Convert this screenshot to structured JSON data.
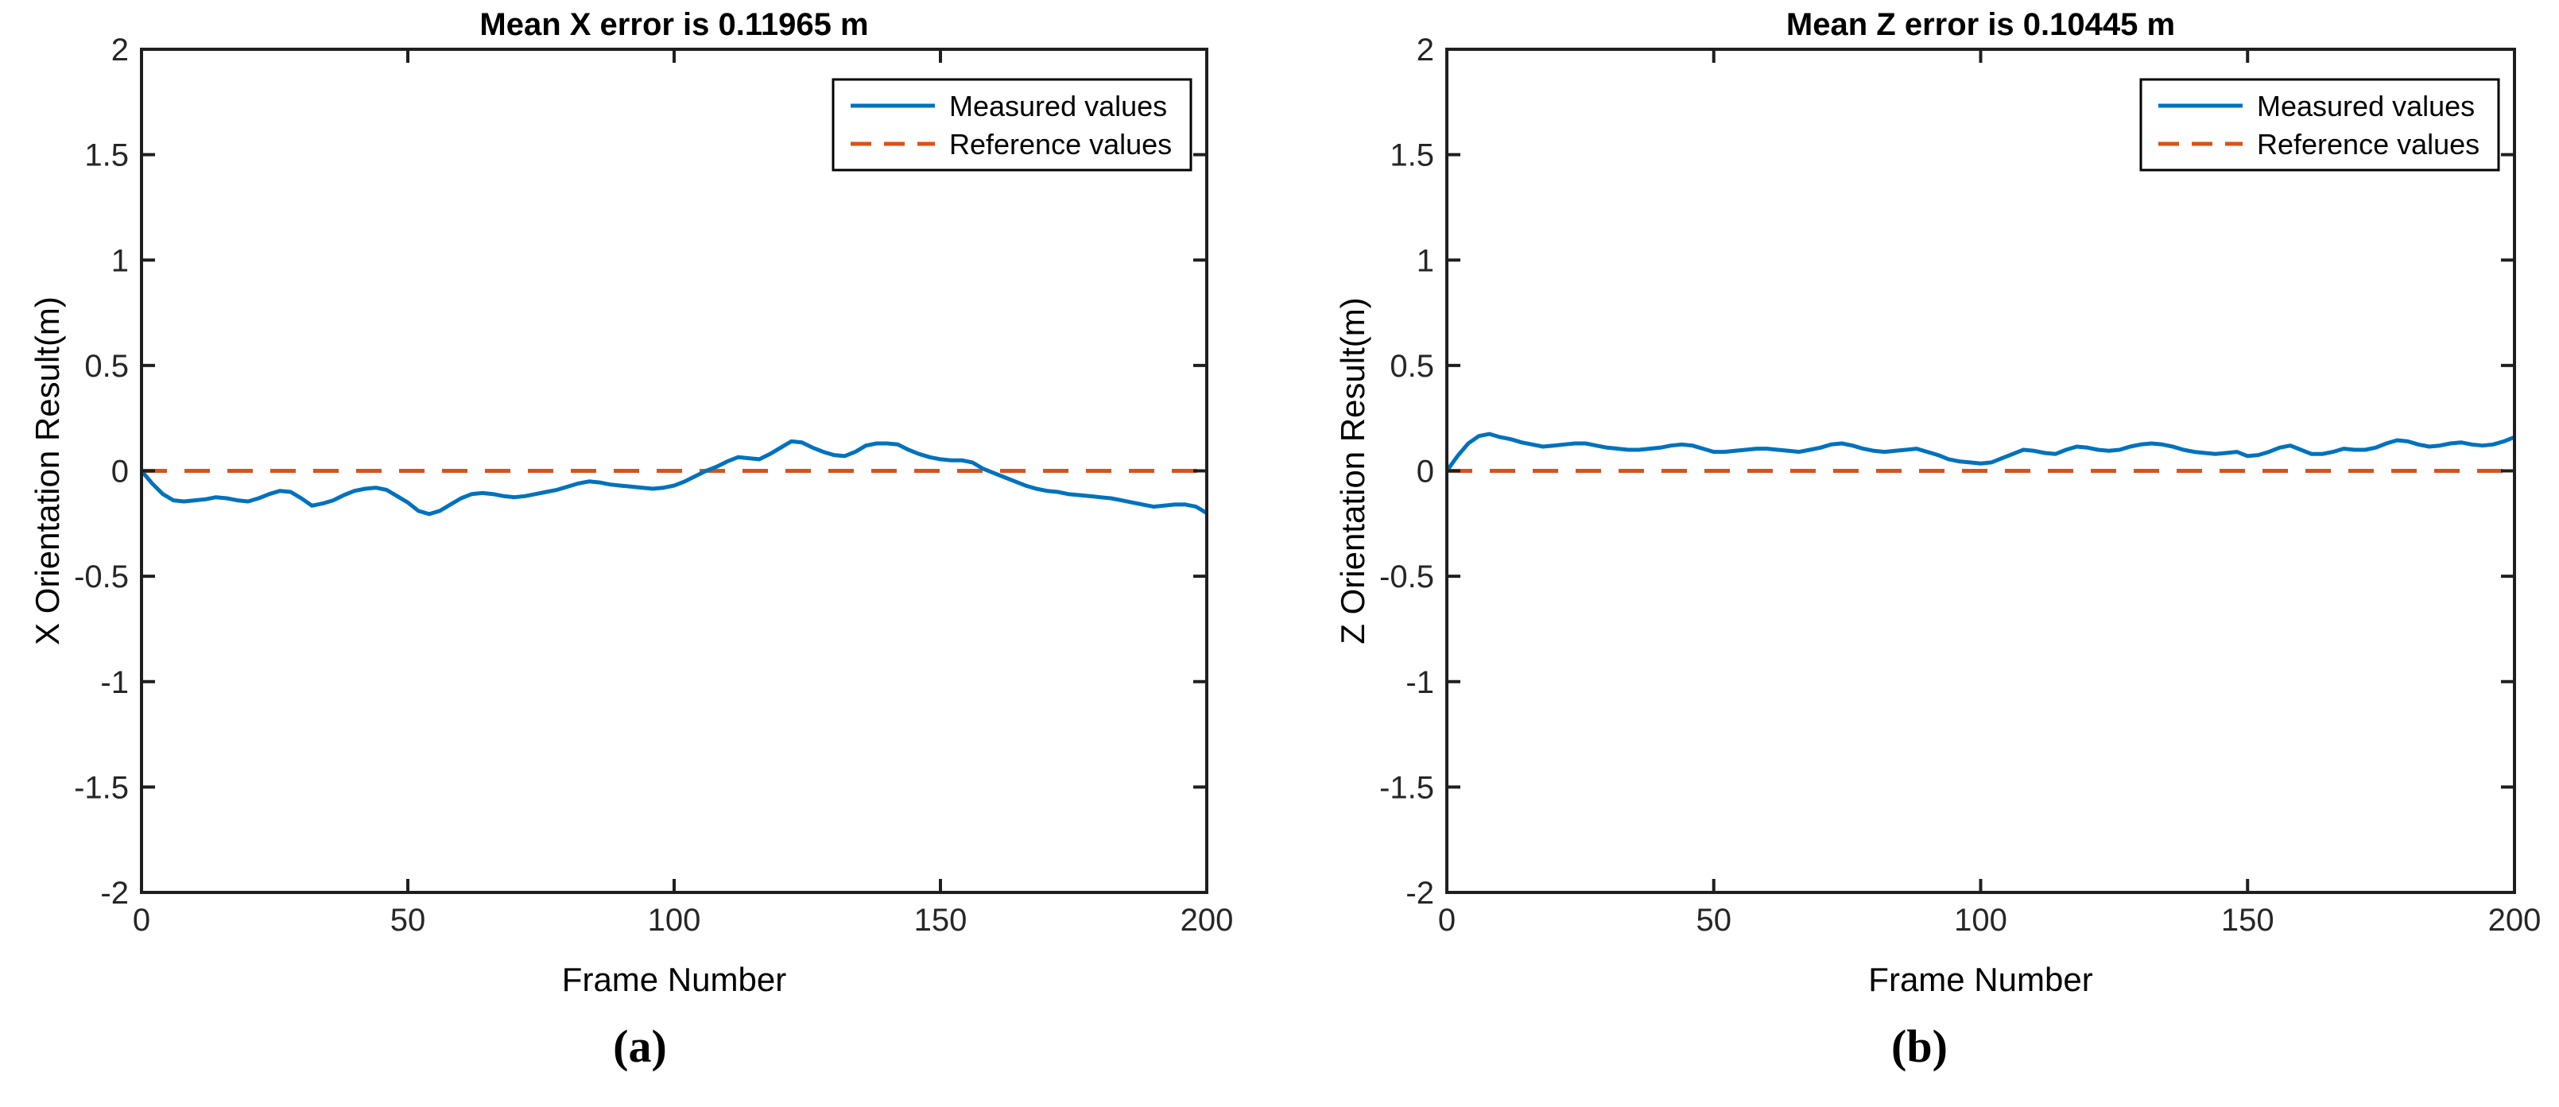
{
  "page": {
    "background": "#ffffff"
  },
  "colors": {
    "measured": "#0072BD",
    "reference": "#D95319",
    "axis": "#1f1f1f",
    "tick_label": "#262626",
    "text": "#000000",
    "legend_border": "#000000",
    "legend_fill": "#ffffff"
  },
  "chart_data": [
    {
      "type": "line",
      "title": "Mean X error is 0.11965 m",
      "xlabel": "Frame Number",
      "ylabel": "X Orientation Result(m)",
      "caption": "(a)",
      "xlim": [
        0,
        200
      ],
      "ylim": [
        -2,
        2
      ],
      "xticks": [
        "0",
        "50",
        "100",
        "150",
        "200"
      ],
      "yticks": [
        "-2",
        "-1.5",
        "-1",
        "-0.5",
        "0",
        "0.5",
        "1",
        "1.5",
        "2"
      ],
      "grid": false,
      "legend": {
        "position": "top-right",
        "entries": [
          "Measured values",
          "Reference values"
        ]
      },
      "series": [
        {
          "name": "Measured values",
          "color": "#0072BD",
          "style": "solid",
          "x_start": 0,
          "x_step": 2,
          "y": [
            0,
            -0.06,
            -0.11,
            -0.14,
            -0.145,
            -0.14,
            -0.135,
            -0.125,
            -0.13,
            -0.14,
            -0.145,
            -0.13,
            -0.11,
            -0.095,
            -0.1,
            -0.13,
            -0.165,
            -0.155,
            -0.14,
            -0.115,
            -0.095,
            -0.085,
            -0.08,
            -0.09,
            -0.12,
            -0.15,
            -0.19,
            -0.205,
            -0.19,
            -0.16,
            -0.13,
            -0.11,
            -0.105,
            -0.11,
            -0.12,
            -0.125,
            -0.12,
            -0.11,
            -0.1,
            -0.09,
            -0.075,
            -0.06,
            -0.05,
            -0.055,
            -0.065,
            -0.07,
            -0.075,
            -0.08,
            -0.085,
            -0.08,
            -0.07,
            -0.05,
            -0.025,
            0,
            0.02,
            0.045,
            0.065,
            0.06,
            0.055,
            0.08,
            0.11,
            0.14,
            0.135,
            0.11,
            0.09,
            0.075,
            0.07,
            0.09,
            0.12,
            0.13,
            0.13,
            0.125,
            0.1,
            0.08,
            0.065,
            0.055,
            0.05,
            0.05,
            0.04,
            0.01,
            -0.01,
            -0.03,
            -0.05,
            -0.07,
            -0.085,
            -0.095,
            -0.1,
            -0.11,
            -0.115,
            -0.12,
            -0.125,
            -0.13,
            -0.14,
            -0.15,
            -0.16,
            -0.17,
            -0.165,
            -0.16,
            -0.16,
            -0.17,
            -0.2
          ]
        },
        {
          "name": "Reference values",
          "color": "#D95319",
          "style": "dashed",
          "x": [
            0,
            200
          ],
          "y": [
            0,
            0
          ]
        }
      ]
    },
    {
      "type": "line",
      "title": "Mean Z error is 0.10445 m",
      "xlabel": "Frame Number",
      "ylabel": "Z Orientation Result(m)",
      "caption": "(b)",
      "xlim": [
        0,
        200
      ],
      "ylim": [
        -2,
        2
      ],
      "xticks": [
        "0",
        "50",
        "100",
        "150",
        "200"
      ],
      "yticks": [
        "-2",
        "-1.5",
        "-1",
        "-0.5",
        "0",
        "0.5",
        "1",
        "1.5",
        "2"
      ],
      "grid": false,
      "legend": {
        "position": "top-right",
        "entries": [
          "Measured values",
          "Reference values"
        ]
      },
      "series": [
        {
          "name": "Measured values",
          "color": "#0072BD",
          "style": "solid",
          "x_start": 0,
          "x_step": 2,
          "y": [
            0,
            0.07,
            0.13,
            0.165,
            0.175,
            0.16,
            0.15,
            0.135,
            0.125,
            0.115,
            0.12,
            0.125,
            0.13,
            0.13,
            0.12,
            0.11,
            0.105,
            0.1,
            0.1,
            0.105,
            0.11,
            0.12,
            0.125,
            0.12,
            0.105,
            0.09,
            0.09,
            0.095,
            0.1,
            0.105,
            0.105,
            0.1,
            0.095,
            0.09,
            0.1,
            0.11,
            0.125,
            0.13,
            0.12,
            0.105,
            0.095,
            0.09,
            0.095,
            0.1,
            0.105,
            0.09,
            0.075,
            0.055,
            0.045,
            0.04,
            0.035,
            0.04,
            0.06,
            0.08,
            0.1,
            0.095,
            0.085,
            0.08,
            0.1,
            0.115,
            0.11,
            0.1,
            0.095,
            0.1,
            0.115,
            0.125,
            0.13,
            0.125,
            0.115,
            0.1,
            0.09,
            0.085,
            0.08,
            0.085,
            0.09,
            0.07,
            0.075,
            0.09,
            0.11,
            0.12,
            0.1,
            0.08,
            0.08,
            0.09,
            0.105,
            0.1,
            0.1,
            0.11,
            0.13,
            0.145,
            0.14,
            0.125,
            0.115,
            0.12,
            0.13,
            0.135,
            0.125,
            0.12,
            0.125,
            0.14,
            0.16
          ]
        },
        {
          "name": "Reference values",
          "color": "#D95319",
          "style": "dashed",
          "x": [
            0,
            200
          ],
          "y": [
            0,
            0
          ]
        }
      ]
    }
  ]
}
